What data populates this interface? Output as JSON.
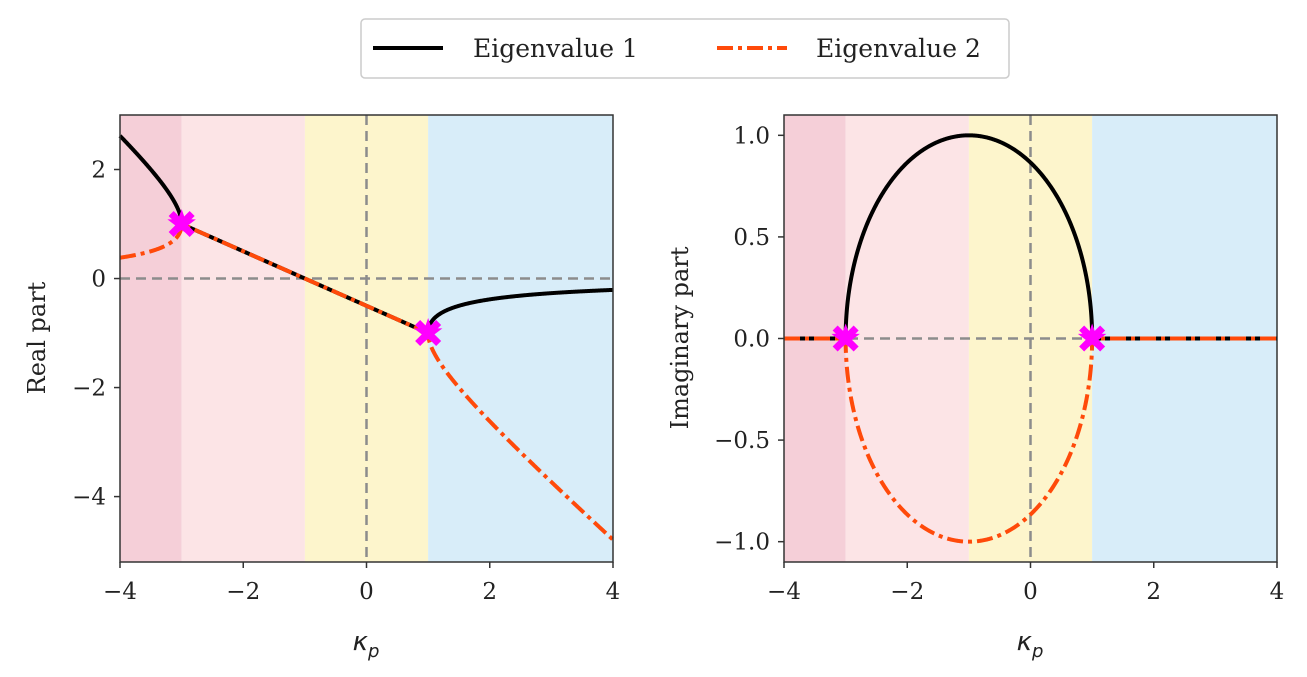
{
  "legend": {
    "entries": [
      {
        "label": "Eigenvalue 1",
        "color": "#000000",
        "style": "solid"
      },
      {
        "label": "Eigenvalue 2",
        "color": "#ff4a0a",
        "style": "dashdot"
      }
    ]
  },
  "colors": {
    "region_unstable_dark": "#f5cfd8",
    "region_unstable_light": "#fce4e6",
    "region_yellow": "#fdf5cc",
    "region_blue": "#d8edf9",
    "reference_line": "#8c8c8c",
    "marker": "#ff00ff",
    "eigen1": "#000000",
    "eigen2": "#ff4a0a"
  },
  "chart_data": [
    {
      "type": "line",
      "title": "",
      "xlabel": {
        "symbol": "κ",
        "subscript": "p"
      },
      "ylabel": "Real part",
      "xlim": [
        -4,
        4
      ],
      "ylim": [
        -5.2,
        3.0
      ],
      "xticks": [
        -4,
        -2,
        0,
        2,
        4
      ],
      "xtick_labels": [
        "−4",
        "−2",
        "0",
        "2",
        "4"
      ],
      "yticks": [
        2,
        0,
        -2,
        -4
      ],
      "ytick_labels": [
        "2",
        "0",
        "−2",
        "−4"
      ],
      "regions": [
        {
          "x": [
            -4,
            -3
          ],
          "color": "region_unstable_dark"
        },
        {
          "x": [
            -3,
            -1
          ],
          "color": "region_unstable_light"
        },
        {
          "x": [
            -1,
            1
          ],
          "color": "region_yellow"
        },
        {
          "x": [
            1,
            4
          ],
          "color": "region_blue"
        }
      ],
      "reference_lines": {
        "x": 0,
        "y": 0
      },
      "series": [
        {
          "name": "Eigenvalue 1",
          "formula": "(-1 - kp + sqrt((kp+1)^2 - 4)) / 2 outside [-3,1], -(1+kp)/2 inside",
          "x_range": [
            -4,
            4
          ]
        },
        {
          "name": "Eigenvalue 2",
          "formula": "(-1 - kp - sqrt((kp+1)^2 - 4)) / 2 outside [-3,1], -(1+kp)/2 inside",
          "x_range": [
            -4,
            4
          ]
        }
      ],
      "markers": [
        {
          "x": -3,
          "y": 1,
          "shape": "X"
        },
        {
          "x": -3,
          "y": 1,
          "shape": "star"
        },
        {
          "x": 1,
          "y": -1,
          "shape": "X"
        },
        {
          "x": 1,
          "y": -1,
          "shape": "star"
        }
      ]
    },
    {
      "type": "line",
      "title": "",
      "xlabel": {
        "symbol": "κ",
        "subscript": "p"
      },
      "ylabel": "Imaginary part",
      "xlim": [
        -4,
        4
      ],
      "ylim": [
        -1.1,
        1.1
      ],
      "xticks": [
        -4,
        -2,
        0,
        2,
        4
      ],
      "xtick_labels": [
        "−4",
        "−2",
        "0",
        "2",
        "4"
      ],
      "yticks": [
        1.0,
        0.5,
        0.0,
        -0.5,
        -1.0
      ],
      "ytick_labels": [
        "1.0",
        "0.5",
        "0.0",
        "−0.5",
        "−1.0"
      ],
      "regions": [
        {
          "x": [
            -4,
            -3
          ],
          "color": "region_unstable_dark"
        },
        {
          "x": [
            -3,
            -1
          ],
          "color": "region_unstable_light"
        },
        {
          "x": [
            -1,
            1
          ],
          "color": "region_yellow"
        },
        {
          "x": [
            1,
            4
          ],
          "color": "region_blue"
        }
      ],
      "reference_lines": {
        "x": 0,
        "y": 0
      },
      "series": [
        {
          "name": "Eigenvalue 1",
          "formula": "+sqrt(4 - (kp+1)^2)/2 inside [-3,1], 0 outside",
          "x_range": [
            -4,
            4
          ]
        },
        {
          "name": "Eigenvalue 2",
          "formula": "-sqrt(4 - (kp+1)^2)/2 inside [-3,1], 0 outside",
          "x_range": [
            -4,
            4
          ]
        }
      ],
      "markers": [
        {
          "x": -3,
          "y": 0,
          "shape": "X"
        },
        {
          "x": -3,
          "y": 0,
          "shape": "star"
        },
        {
          "x": 1,
          "y": 0,
          "shape": "X"
        },
        {
          "x": 1,
          "y": 0,
          "shape": "star"
        }
      ]
    }
  ]
}
